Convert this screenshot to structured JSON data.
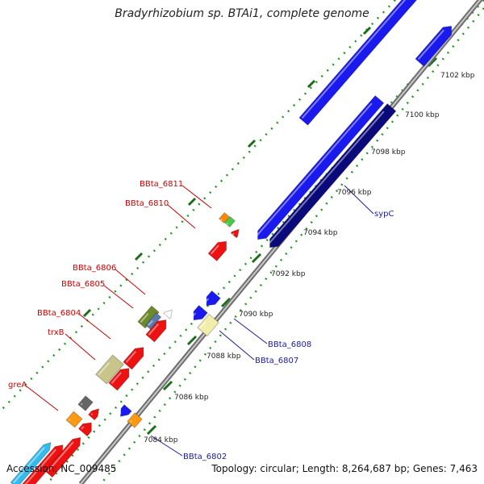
{
  "title": "Bradyrhizobium sp. BTAi1, complete genome",
  "accession_text": "Accession: NC_009485",
  "topology_text": "Topology: circular; Length: 8,264,687 bp; Genes: 7,463",
  "colors": {
    "backbone": "#8c8c8c",
    "tick_dot": "#229922",
    "tick_major": "#1a6e1a",
    "red_label": "#cc0000",
    "blue_label": "#1a1aa0",
    "red_gene": "#ee1111",
    "blue_gene": "#1a1aee",
    "navy_gene": "#0a0a7a"
  },
  "kbp_ticks": [
    {
      "label": "7084 kbp"
    },
    {
      "label": "7086 kbp"
    },
    {
      "label": "7088 kbp"
    },
    {
      "label": "7090 kbp"
    },
    {
      "label": "7092 kbp"
    },
    {
      "label": "7094 kbp"
    },
    {
      "label": "7096 kbp"
    },
    {
      "label": "7098 kbp"
    },
    {
      "label": "7100 kbp"
    },
    {
      "label": "7102 kbp"
    }
  ],
  "gene_labels": [
    {
      "text": "BBta_6811",
      "color": "red"
    },
    {
      "text": "BBta_6810",
      "color": "red"
    },
    {
      "text": "BBta_6806",
      "color": "red"
    },
    {
      "text": "BBta_6805",
      "color": "red"
    },
    {
      "text": "BBta_6804",
      "color": "red"
    },
    {
      "text": "trxB",
      "color": "red"
    },
    {
      "text": "greA",
      "color": "red"
    },
    {
      "text": "sypC",
      "color": "blue"
    },
    {
      "text": "BBta_6808",
      "color": "blue"
    },
    {
      "text": "BBta_6807",
      "color": "blue"
    },
    {
      "text": "BBta_6802",
      "color": "blue"
    }
  ]
}
